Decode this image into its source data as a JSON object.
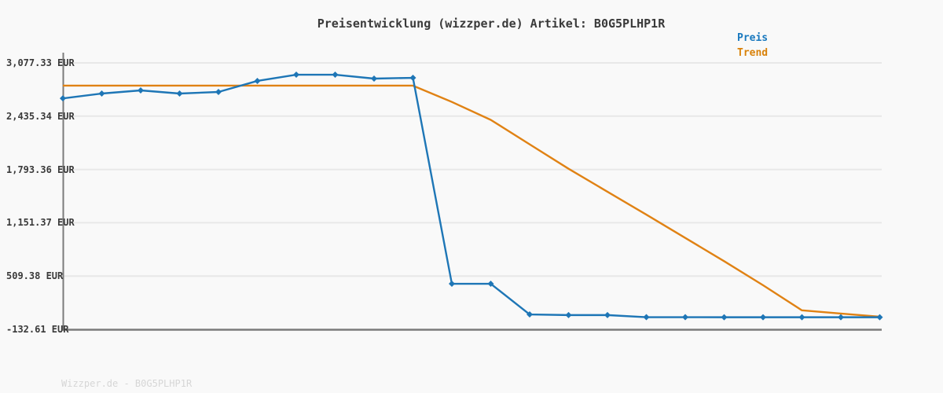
{
  "title": "Preisentwicklung (wizzper.de) Artikel: B0G5PLHP1R",
  "watermark": "Wizzper.de - B0G5PLHP1R",
  "legend": [
    {
      "label": "Preis",
      "color": "#1878be"
    },
    {
      "label": "Trend",
      "color": "#d9820a"
    }
  ],
  "colors": {
    "preis_line": "#1e76b6",
    "trend_line": "#e08214",
    "grid": "#e8e8e8",
    "axis": "#7b7b7b",
    "background": "#f9f9f9",
    "title_text": "#3a3a3a",
    "watermark_text": "#d6d6d6"
  },
  "chart_data": {
    "type": "line",
    "title": "Preisentwicklung (wizzper.de) Artikel: B0G5PLHP1R",
    "ylabel": "EUR",
    "xlabel": "",
    "x_labels_visible": false,
    "grid": "horizontal",
    "legend_position": "top-right",
    "ylim": [
      -132.61,
      3077.33
    ],
    "y_ticks": [
      {
        "label": "3,077.33 EUR",
        "value": 3077.33
      },
      {
        "label": "2,435.34 EUR",
        "value": 2435.34
      },
      {
        "label": "1,793.36 EUR",
        "value": 1793.36
      },
      {
        "label": "1,151.37 EUR",
        "value": 1151.37
      },
      {
        "label": "509.38 EUR",
        "value": 509.38
      },
      {
        "label": "-132.61 EUR",
        "value": -132.61
      }
    ],
    "x": [
      1,
      2,
      3,
      4,
      5,
      6,
      7,
      8,
      9,
      10,
      11,
      12,
      13,
      14,
      15,
      16,
      17,
      18,
      19,
      20,
      21,
      22
    ],
    "series": [
      {
        "name": "Preis",
        "color": "#1e76b6",
        "marker": "diamond",
        "values": [
          2650,
          2708,
          2746,
          2708,
          2727,
          2860,
          2935,
          2935,
          2888,
          2897,
          416,
          416,
          47,
          39,
          39,
          14,
          14,
          13,
          13,
          13,
          13,
          13
        ]
      },
      {
        "name": "Trend",
        "color": "#e08214",
        "marker": "none",
        "values": [
          2803,
          2803,
          2803,
          2803,
          2803,
          2803,
          2803,
          2803,
          2803,
          2803,
          2607,
          2391,
          2096,
          1802,
          1525,
          1249,
          969,
          688,
          399,
          96,
          57,
          19
        ]
      }
    ]
  }
}
